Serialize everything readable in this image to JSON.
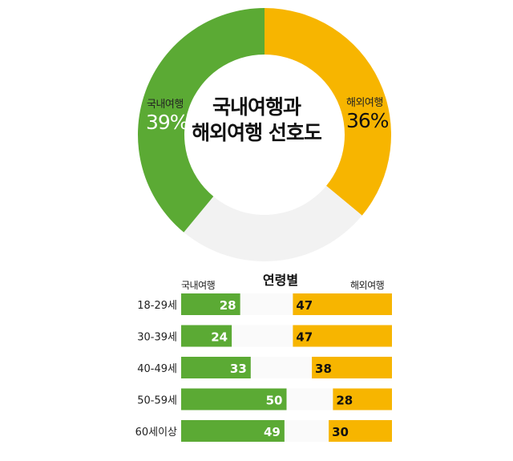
{
  "colors": {
    "domestic": "#5BAA34",
    "overseas": "#F7B500",
    "other": "#F2F2F2",
    "track": "#FAFAFA"
  },
  "donut": {
    "title_line1": "국내여행과",
    "title_line2": "해외여행 선호도",
    "domestic_label": "국내여행",
    "domestic_value": "39%",
    "overseas_label": "해외여행",
    "overseas_value": "36%"
  },
  "age_section": {
    "title": "연령별",
    "domestic_head": "국내여행",
    "overseas_head": "해외여행"
  },
  "chart_data": [
    {
      "type": "pie",
      "title": "국내여행과 해외여행 선호도",
      "slices": [
        {
          "name": "해외여행",
          "value": 36
        },
        {
          "name": "",
          "value": 25
        },
        {
          "name": "국내여행",
          "value": 39
        }
      ]
    },
    {
      "type": "bar",
      "title": "연령별",
      "categories": [
        "18-29세",
        "30-39세",
        "40-49세",
        "50-59세",
        "60세이상"
      ],
      "series": [
        {
          "name": "국내여행",
          "values": [
            28,
            24,
            33,
            50,
            49
          ]
        },
        {
          "name": "해외여행",
          "values": [
            47,
            47,
            38,
            28,
            30
          ]
        }
      ],
      "max": 100
    }
  ]
}
